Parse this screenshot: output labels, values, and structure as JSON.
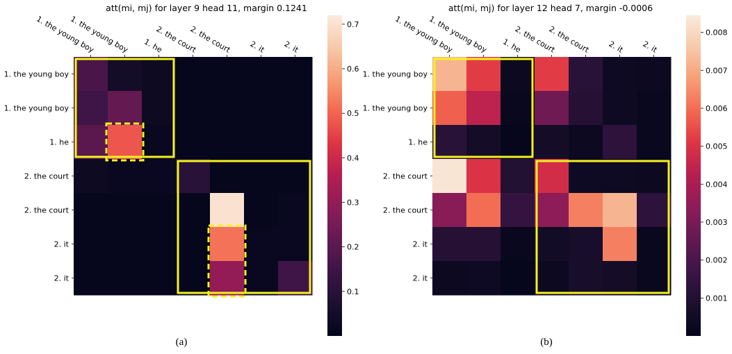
{
  "chart_data": [
    {
      "type": "heatmap",
      "title": "att(mi, mj) for layer 9 head 11, margin 0.1241",
      "caption": "(a)",
      "x_labels": [
        "1. the young boy",
        "1. the young boy",
        "1. he",
        "2. the court",
        "2. the court",
        "2. it",
        "2. it"
      ],
      "y_labels": [
        "1. the young boy",
        "1. the young boy",
        "1. he",
        "2. the court",
        "2. the court",
        "2. it",
        "2. it"
      ],
      "values": [
        [
          0.17,
          0.05,
          0.03,
          0.01,
          0.01,
          0.01,
          0.01
        ],
        [
          0.15,
          0.22,
          0.03,
          0.01,
          0.01,
          0.01,
          0.01
        ],
        [
          0.2,
          0.48,
          0.02,
          0.01,
          0.01,
          0.01,
          0.01
        ],
        [
          0.03,
          0.02,
          0.02,
          0.1,
          0.01,
          0.01,
          0.01
        ],
        [
          0.01,
          0.01,
          0.01,
          0.01,
          0.7,
          0.01,
          0.02
        ],
        [
          0.01,
          0.01,
          0.01,
          0.01,
          0.52,
          0.02,
          0.02
        ],
        [
          0.01,
          0.01,
          0.01,
          0.01,
          0.3,
          0.02,
          0.15
        ]
      ],
      "colorbar": {
        "min": 0.0,
        "max": 0.72,
        "ticks": [
          "0.1",
          "0.2",
          "0.3",
          "0.4",
          "0.5",
          "0.6",
          "0.7"
        ]
      },
      "highlight_boxes": [
        {
          "style": "solid",
          "rows": [
            0,
            2
          ],
          "cols": [
            0,
            2
          ],
          "color": "#f7f21f"
        },
        {
          "style": "solid",
          "rows": [
            3,
            6
          ],
          "cols": [
            3,
            6
          ],
          "color": "#f7f21f"
        },
        {
          "style": "dashed",
          "rows": [
            2,
            2
          ],
          "cols": [
            1,
            1
          ],
          "color": "#f7f21f"
        },
        {
          "style": "dashed",
          "rows": [
            5,
            6
          ],
          "cols": [
            4,
            4
          ],
          "color": "#f7f21f"
        }
      ]
    },
    {
      "type": "heatmap",
      "title": "att(mi, mj) for layer 12 head 7, margin -0.0006",
      "caption": "(b)",
      "x_labels": [
        "1. the young boy",
        "1. the young boy",
        "1. he",
        "2. the court",
        "2. the court",
        "2. it",
        "2. it"
      ],
      "y_labels": [
        "1. the young boy",
        "1. the young boy",
        "1. he",
        "2. the court",
        "2. the court",
        "2. it",
        "2. it"
      ],
      "values": [
        [
          0.0072,
          0.0052,
          0.0003,
          0.0052,
          0.0012,
          0.0004,
          0.0003
        ],
        [
          0.0058,
          0.0044,
          0.0002,
          0.0028,
          0.0011,
          0.0004,
          0.0002
        ],
        [
          0.0012,
          0.0006,
          0.0001,
          0.0006,
          0.0003,
          0.0013,
          0.0002
        ],
        [
          0.0083,
          0.005,
          0.001,
          0.0048,
          0.0004,
          0.0004,
          0.0003
        ],
        [
          0.0033,
          0.006,
          0.0015,
          0.0034,
          0.0063,
          0.0072,
          0.0013
        ],
        [
          0.0011,
          0.0011,
          0.0002,
          0.0005,
          0.0007,
          0.0063,
          0.0002
        ],
        [
          0.0003,
          0.0004,
          0.0001,
          0.0003,
          0.0007,
          0.0006,
          0.0002
        ]
      ],
      "colorbar": {
        "min": 0.0,
        "max": 0.00845,
        "ticks": [
          "0.001",
          "0.002",
          "0.003",
          "0.004",
          "0.005",
          "0.006",
          "0.007",
          "0.008"
        ]
      },
      "highlight_boxes": [
        {
          "style": "solid",
          "rows": [
            0,
            2
          ],
          "cols": [
            0,
            2
          ],
          "color": "#f7f21f"
        },
        {
          "style": "solid",
          "rows": [
            3,
            6
          ],
          "cols": [
            3,
            6
          ],
          "color": "#f7f21f"
        }
      ]
    }
  ]
}
